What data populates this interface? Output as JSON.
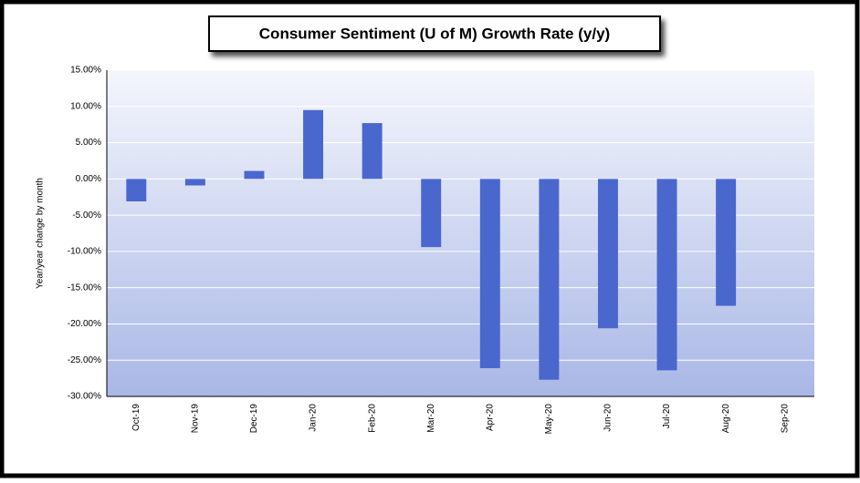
{
  "chart_data": {
    "type": "bar",
    "title": "Consumer Sentiment (U of M) Growth Rate (y/y)",
    "ylabel": "Year/year change by month",
    "categories": [
      "Oct-19",
      "Nov-19",
      "Dec-19",
      "Jan-20",
      "Feb-20",
      "Mar-20",
      "Apr-20",
      "May-20",
      "Jun-20",
      "Jul-20",
      "Aug-20",
      "Sep-20"
    ],
    "values": [
      -3.1,
      -0.9,
      1.1,
      9.5,
      7.7,
      -9.4,
      -26.1,
      -27.7,
      -20.6,
      -26.4,
      -17.5,
      null
    ],
    "color": "#4a67cd",
    "ylim": [
      -30,
      15
    ],
    "yticks": [
      {
        "value": -30,
        "label": "-30.00%"
      },
      {
        "value": -25,
        "label": "-25.00%"
      },
      {
        "value": -20,
        "label": "-20.00%"
      },
      {
        "value": -15,
        "label": "-15.00%"
      },
      {
        "value": -10,
        "label": "-10.00%"
      },
      {
        "value": -5,
        "label": "-5.00%"
      },
      {
        "value": 0,
        "label": "0.00%"
      },
      {
        "value": 5,
        "label": "5.00%"
      },
      {
        "value": 10,
        "label": "10.00%"
      },
      {
        "value": 15,
        "label": "15.00%"
      }
    ],
    "grid": true
  }
}
